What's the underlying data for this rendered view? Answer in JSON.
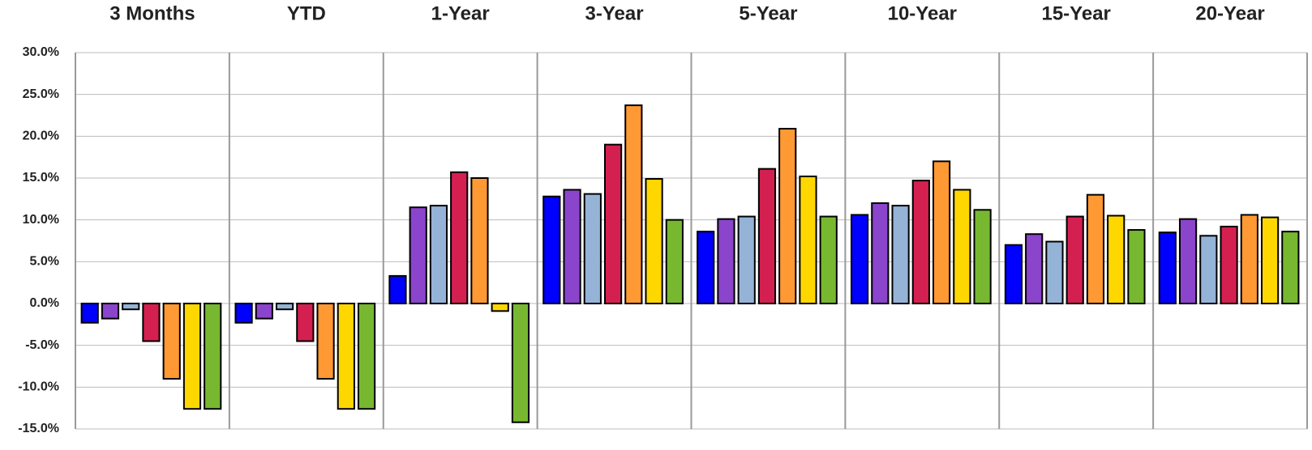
{
  "chart_data": {
    "type": "bar",
    "categories": [
      "3 Months",
      "YTD",
      "1-Year",
      "3-Year",
      "5-Year",
      "10-Year",
      "15-Year",
      "20-Year"
    ],
    "series": [
      {
        "color": "#0000ff",
        "values": [
          -2.3,
          -2.3,
          3.3,
          12.8,
          8.6,
          10.6,
          7.0,
          8.5
        ]
      },
      {
        "color": "#8b44cc",
        "values": [
          -1.8,
          -1.8,
          11.5,
          13.6,
          10.1,
          12.0,
          8.3,
          10.1
        ]
      },
      {
        "color": "#95b3d7",
        "values": [
          -0.7,
          -0.7,
          11.7,
          13.1,
          10.4,
          11.7,
          7.4,
          8.1
        ]
      },
      {
        "color": "#d42050",
        "values": [
          -4.5,
          -4.5,
          15.7,
          19.0,
          16.1,
          14.7,
          10.4,
          9.2
        ]
      },
      {
        "color": "#ff9933",
        "values": [
          -9.0,
          -9.0,
          15.0,
          23.7,
          20.9,
          17.0,
          13.0,
          10.6
        ]
      },
      {
        "color": "#ffd700",
        "values": [
          -12.6,
          -12.6,
          -0.9,
          14.9,
          15.2,
          13.6,
          10.5,
          10.3
        ]
      },
      {
        "color": "#77b830",
        "values": [
          -12.6,
          -12.6,
          -14.2,
          10.0,
          10.4,
          11.2,
          8.8,
          8.6
        ]
      }
    ],
    "ylim": [
      -15,
      30
    ],
    "yticks": [
      {
        "value": -15,
        "label": "-15.0%"
      },
      {
        "value": -10,
        "label": "-10.0%"
      },
      {
        "value": -5,
        "label": "-5.0%"
      },
      {
        "value": 0,
        "label": "0.0%"
      },
      {
        "value": 5,
        "label": "5.0%"
      },
      {
        "value": 10,
        "label": "10.0%"
      },
      {
        "value": 15,
        "label": "15.0%"
      },
      {
        "value": 20,
        "label": "20.0%"
      },
      {
        "value": 25,
        "label": "25.0%"
      },
      {
        "value": 30,
        "label": "30.0%"
      }
    ],
    "grid": true
  }
}
